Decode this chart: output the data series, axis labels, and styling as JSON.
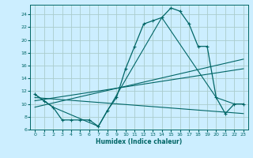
{
  "xlabel": "Humidex (Indice chaleur)",
  "bg_color": "#cceeff",
  "line_color": "#006666",
  "grid_color": "#aacccc",
  "xlim": [
    -0.5,
    23.5
  ],
  "ylim": [
    6,
    25.5
  ],
  "xticks": [
    0,
    1,
    2,
    3,
    4,
    5,
    6,
    7,
    8,
    9,
    10,
    11,
    12,
    13,
    14,
    15,
    16,
    17,
    18,
    19,
    20,
    21,
    22,
    23
  ],
  "yticks": [
    6,
    8,
    10,
    12,
    14,
    16,
    18,
    20,
    22,
    24
  ],
  "curve1_x": [
    0,
    1,
    2,
    3,
    4,
    5,
    6,
    7,
    8,
    9,
    10,
    11,
    12,
    13,
    14,
    15,
    16,
    17,
    18,
    19,
    20,
    21,
    22,
    23
  ],
  "curve1_y": [
    11.5,
    10.5,
    9.5,
    7.5,
    7.5,
    7.5,
    7.5,
    6.5,
    9.0,
    11.0,
    15.5,
    19.0,
    22.5,
    23.0,
    23.5,
    25.0,
    24.5,
    22.5,
    19.0,
    19.0,
    11.0,
    8.5,
    10.0,
    10.0
  ],
  "curve2_x": [
    0,
    2,
    7,
    14,
    20,
    22,
    23
  ],
  "curve2_y": [
    11.5,
    9.5,
    6.5,
    23.5,
    11.0,
    10.0,
    10.0
  ],
  "curve3_x": [
    0,
    23
  ],
  "curve3_y": [
    9.5,
    17.0
  ],
  "curve4_x": [
    0,
    23
  ],
  "curve4_y": [
    10.5,
    15.5
  ],
  "curve5_x": [
    0,
    23
  ],
  "curve5_y": [
    11.0,
    8.5
  ]
}
